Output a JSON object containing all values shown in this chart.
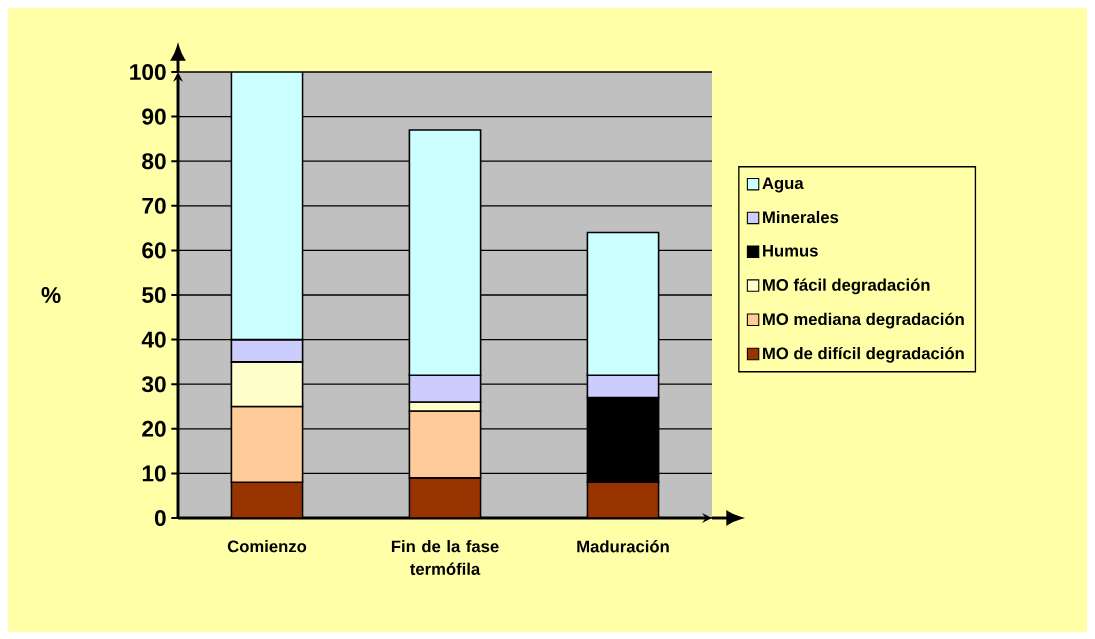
{
  "chart_data": {
    "type": "bar",
    "stacked": true,
    "ylabel": "%",
    "categories": [
      "Comienzo",
      "Fin de la fase termófila",
      "Maduración"
    ],
    "series": [
      {
        "name": "MO de difícil degradación",
        "color": "#993300",
        "values": [
          8,
          9,
          8
        ]
      },
      {
        "name": "MO mediana degradación",
        "color": "#ffcc99",
        "values": [
          17,
          15,
          null
        ]
      },
      {
        "name": "MO fácil degradación",
        "color": "#ffffcc",
        "values": [
          10,
          2,
          null
        ]
      },
      {
        "name": "Humus",
        "color": "#000000",
        "values": [
          null,
          null,
          19
        ]
      },
      {
        "name": "Minerales",
        "color": "#ccccff",
        "values": [
          5,
          6,
          5
        ]
      },
      {
        "name": "Agua",
        "color": "#ccffff",
        "values": [
          60,
          55,
          32
        ]
      }
    ],
    "ylim": [
      0,
      100
    ],
    "yticks": [
      0,
      10,
      20,
      30,
      40,
      50,
      60,
      70,
      80,
      90,
      100
    ],
    "grid": "y",
    "legend": "right"
  }
}
